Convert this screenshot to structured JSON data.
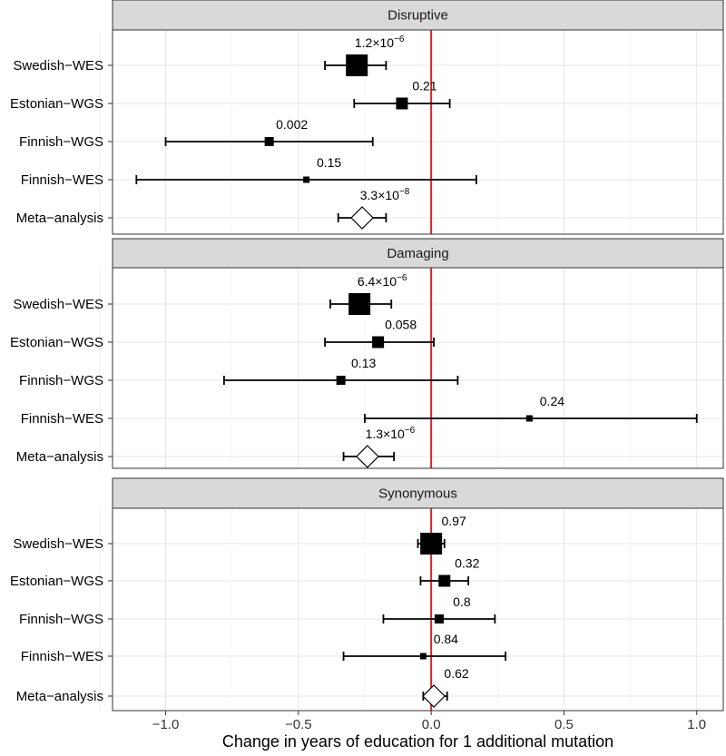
{
  "chart_data": {
    "type": "forest",
    "xlabel": "Change in years of education for 1 additional mutation",
    "xlim": [
      -1.2,
      1.1
    ],
    "x_ticks": [
      -1.0,
      -0.5,
      0.0,
      0.5,
      1.0
    ],
    "x_tick_labels": [
      "−1.0",
      "−0.5",
      "0.0",
      "0.5",
      "1.0"
    ],
    "reference_line": 0,
    "reference_color": "#cc2b2b",
    "rows": [
      "Swedish−WES",
      "Estonian−WGS",
      "Finnish−WGS",
      "Finnish−WES",
      "Meta−analysis"
    ],
    "panels": [
      {
        "title": "Disruptive",
        "points": [
          {
            "study": "Swedish-WES",
            "estimate": -0.28,
            "lo": -0.4,
            "hi": -0.17,
            "weight": 1.0,
            "label": "1.2×10",
            "exp": "−6",
            "shape": "square"
          },
          {
            "study": "Estonian-WGS",
            "estimate": -0.11,
            "lo": -0.29,
            "hi": 0.07,
            "weight": 0.45,
            "label": "0.21",
            "exp": "",
            "shape": "square"
          },
          {
            "study": "Finnish-WGS",
            "estimate": -0.61,
            "lo": -1.0,
            "hi": -0.22,
            "weight": 0.3,
            "label": "0.002",
            "exp": "",
            "shape": "square"
          },
          {
            "study": "Finnish-WES",
            "estimate": -0.47,
            "lo": -1.11,
            "hi": 0.17,
            "weight": 0.15,
            "label": "0.15",
            "exp": "",
            "shape": "square"
          },
          {
            "study": "Meta-analysis",
            "estimate": -0.26,
            "lo": -0.35,
            "hi": -0.17,
            "weight": 1.0,
            "label": "3.3×10",
            "exp": "−8",
            "shape": "diamond"
          }
        ]
      },
      {
        "title": "Damaging",
        "points": [
          {
            "study": "Swedish-WES",
            "estimate": -0.27,
            "lo": -0.38,
            "hi": -0.15,
            "weight": 1.0,
            "label": "6.4×10",
            "exp": "−6",
            "shape": "square"
          },
          {
            "study": "Estonian-WGS",
            "estimate": -0.2,
            "lo": -0.4,
            "hi": 0.01,
            "weight": 0.45,
            "label": "0.058",
            "exp": "",
            "shape": "square"
          },
          {
            "study": "Finnish-WGS",
            "estimate": -0.34,
            "lo": -0.78,
            "hi": 0.1,
            "weight": 0.3,
            "label": "0.13",
            "exp": "",
            "shape": "square"
          },
          {
            "study": "Finnish-WES",
            "estimate": 0.37,
            "lo": -0.25,
            "hi": 1.0,
            "weight": 0.15,
            "label": "0.24",
            "exp": "",
            "shape": "square"
          },
          {
            "study": "Meta-analysis",
            "estimate": -0.24,
            "lo": -0.33,
            "hi": -0.14,
            "weight": 1.0,
            "label": "1.3×10",
            "exp": "−6",
            "shape": "diamond"
          }
        ]
      },
      {
        "title": "Synonymous",
        "points": [
          {
            "study": "Swedish-WES",
            "estimate": 0.0,
            "lo": -0.05,
            "hi": 0.05,
            "weight": 1.0,
            "label": "0.97",
            "exp": "",
            "shape": "square"
          },
          {
            "study": "Estonian-WGS",
            "estimate": 0.05,
            "lo": -0.04,
            "hi": 0.14,
            "weight": 0.45,
            "label": "0.32",
            "exp": "",
            "shape": "square"
          },
          {
            "study": "Finnish-WGS",
            "estimate": 0.03,
            "lo": -0.18,
            "hi": 0.24,
            "weight": 0.3,
            "label": "0.8",
            "exp": "",
            "shape": "square"
          },
          {
            "study": "Finnish-WES",
            "estimate": -0.03,
            "lo": -0.33,
            "hi": 0.28,
            "weight": 0.15,
            "label": "0.84",
            "exp": "",
            "shape": "square"
          },
          {
            "study": "Meta-analysis",
            "estimate": 0.01,
            "lo": -0.03,
            "hi": 0.06,
            "weight": 1.0,
            "label": "0.62",
            "exp": "",
            "shape": "diamond"
          }
        ]
      }
    ]
  }
}
